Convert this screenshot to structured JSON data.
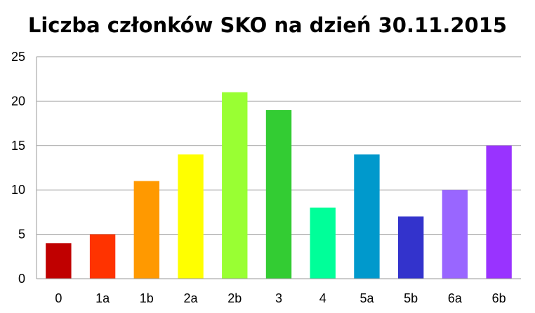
{
  "chart_data": {
    "type": "bar",
    "title": "Liczba członków SKO na dzień 30.11.2015",
    "xlabel": "",
    "ylabel": "",
    "categories": [
      "0",
      "1a",
      "1b",
      "2a",
      "2b",
      "3",
      "4",
      "5a",
      "5b",
      "6a",
      "6b"
    ],
    "values": [
      4,
      5,
      11,
      14,
      21,
      19,
      8,
      14,
      7,
      10,
      15
    ],
    "colors": [
      "#C00000",
      "#FF3300",
      "#FF9900",
      "#FFFF00",
      "#99FF33",
      "#33CC33",
      "#00FF99",
      "#0099CC",
      "#3333CC",
      "#9966FF",
      "#9933FF"
    ],
    "ylim": [
      0,
      25
    ],
    "yticks": [
      "0",
      "5",
      "10",
      "15",
      "20",
      "25"
    ],
    "grid": true,
    "legend": "none"
  }
}
